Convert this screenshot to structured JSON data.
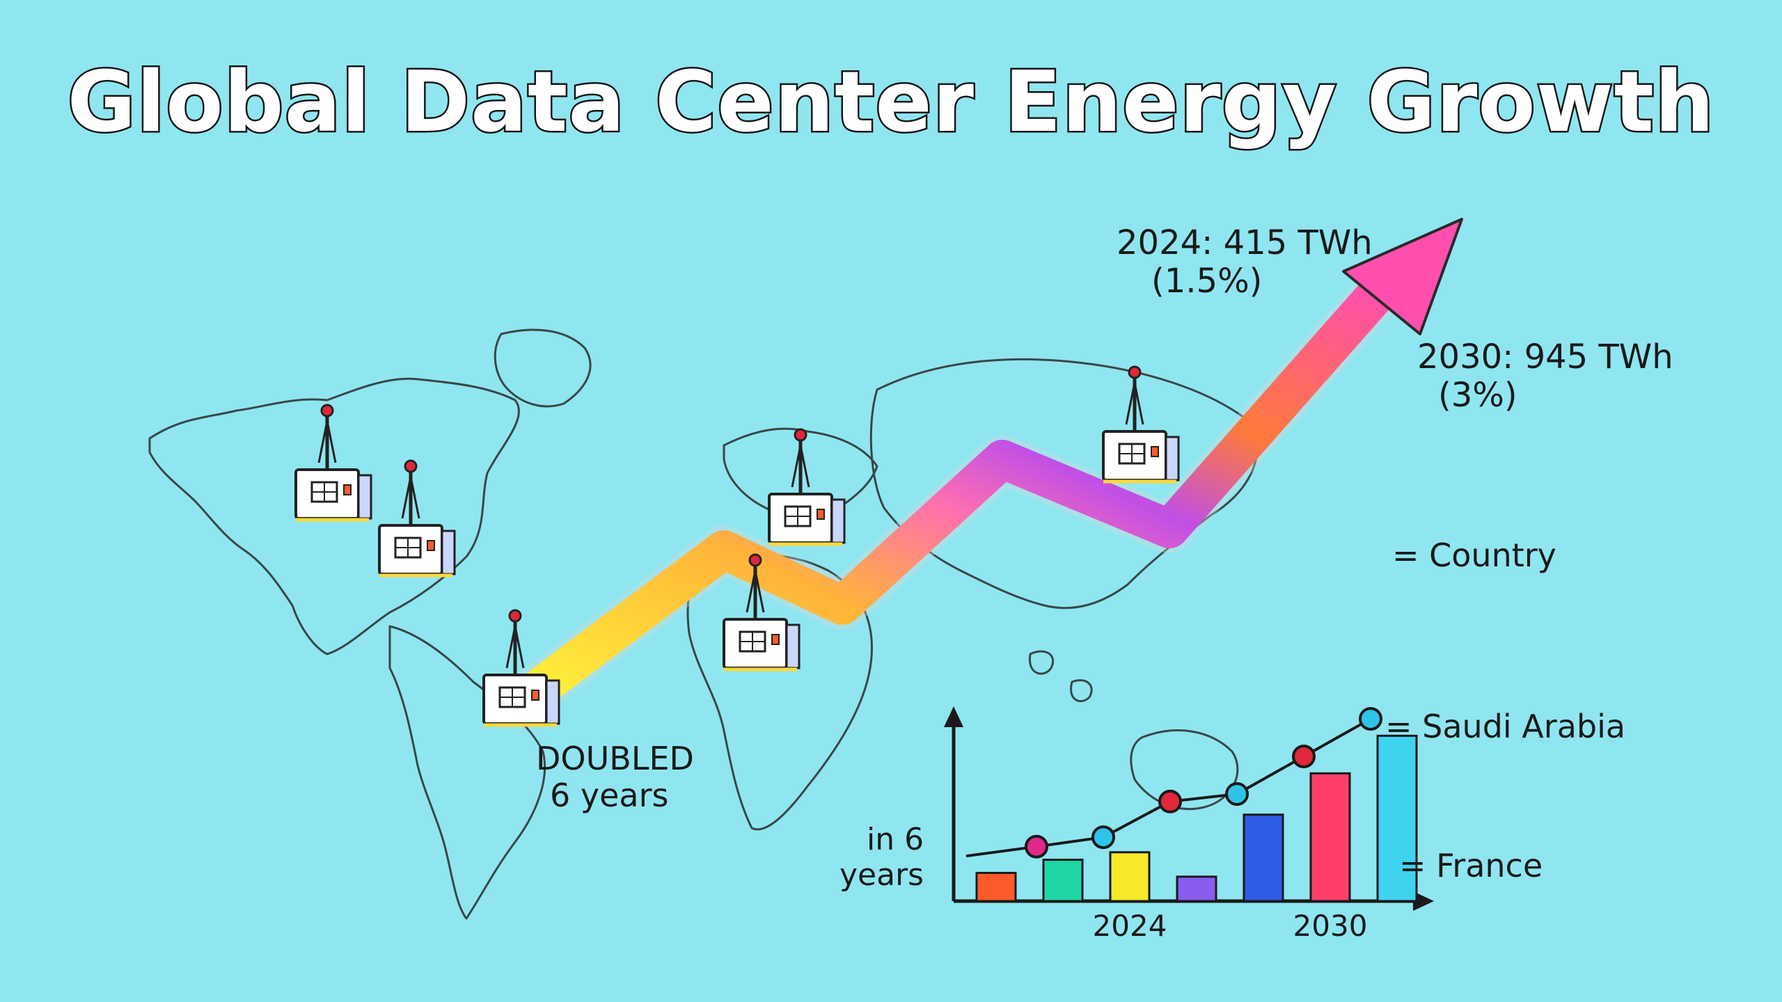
{
  "title": "Global Data Center Energy Growth",
  "annotations": {
    "point_2024_line1": "2024: 415 TWh",
    "point_2024_line2": "(1.5%)",
    "point_2030_line1": "2030: 945 TWh",
    "point_2030_line2": "(3%)",
    "doubled_line1": "DOUBLED",
    "doubled_line2": "6 years",
    "in6_line1": "in  6",
    "in6_line2": "years"
  },
  "legend": {
    "country": "= Country",
    "saudi": "= Saudi Arabia",
    "france": "= France"
  },
  "colors": {
    "background": "#8fe6f0",
    "arrow_start": "#ffef3a",
    "arrow_mid": "#ff7a3a",
    "arrow_purple": "#c04fe6",
    "arrow_end": "#ff4fae",
    "bars": [
      "#ff5a2a",
      "#1fd6a6",
      "#f7e82a",
      "#8a5cf0",
      "#2e5ce6",
      "#ff3f6a",
      "#3fd2ee"
    ]
  },
  "icons": [
    "map-icon",
    "data-center-icon",
    "growth-arrow-icon"
  ],
  "chart_data": {
    "type": "bar",
    "title": "",
    "xlabel": "",
    "ylabel": "",
    "categories": [
      "",
      "",
      "2024",
      "",
      "",
      "2030",
      ""
    ],
    "values": [
      15,
      22,
      26,
      13,
      46,
      68,
      88
    ],
    "line_values": [
      24,
      29,
      34,
      53,
      57,
      77,
      97
    ],
    "ylim": [
      0,
      100
    ],
    "grid": false
  }
}
